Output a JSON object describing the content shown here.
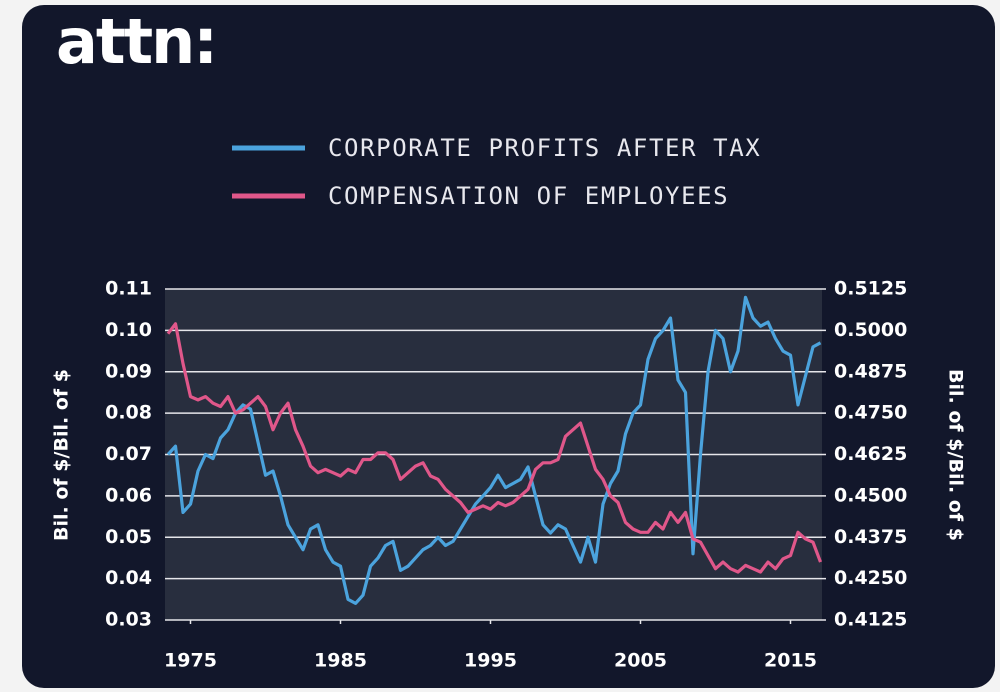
{
  "chart_data": {
    "type": "line",
    "logo": "attn:",
    "y_label": "Bil. of $/Bil. of $",
    "y2_label": "Bil. of $/Bil. of $",
    "x": [
      1973.5,
      1974,
      1974.5,
      1975,
      1975.5,
      1976,
      1976.5,
      1977,
      1977.5,
      1978,
      1978.5,
      1979,
      1979.5,
      1980,
      1980.5,
      1981,
      1981.5,
      1982,
      1982.5,
      1983,
      1983.5,
      1984,
      1984.5,
      1985,
      1985.5,
      1986,
      1986.5,
      1987,
      1987.5,
      1988,
      1988.5,
      1989,
      1989.5,
      1990,
      1990.5,
      1991,
      1991.5,
      1992,
      1992.5,
      1993,
      1993.5,
      1994,
      1994.5,
      1995,
      1995.5,
      1996,
      1996.5,
      1997,
      1997.5,
      1998,
      1998.5,
      1999,
      1999.5,
      2000,
      2000.5,
      2001,
      2001.5,
      2002,
      2002.5,
      2003,
      2003.5,
      2004,
      2004.5,
      2005,
      2005.5,
      2006,
      2006.5,
      2007,
      2007.5,
      2008,
      2008.5,
      2009,
      2009.5,
      2010,
      2010.5,
      2011,
      2011.5,
      2012,
      2012.5,
      2013,
      2013.5,
      2014,
      2014.5,
      2015,
      2015.5,
      2016,
      2016.5,
      2017
    ],
    "series": [
      {
        "name": "CORPORATE PROFITS AFTER TAX",
        "color": "#4ba3dd",
        "axis": "y",
        "values": [
          0.07,
          0.072,
          0.056,
          0.058,
          0.066,
          0.07,
          0.069,
          0.074,
          0.076,
          0.08,
          0.082,
          0.081,
          0.073,
          0.065,
          0.066,
          0.06,
          0.053,
          0.05,
          0.047,
          0.052,
          0.053,
          0.047,
          0.044,
          0.043,
          0.035,
          0.034,
          0.036,
          0.043,
          0.045,
          0.048,
          0.049,
          0.042,
          0.043,
          0.045,
          0.047,
          0.048,
          0.05,
          0.048,
          0.049,
          0.052,
          0.055,
          0.058,
          0.06,
          0.062,
          0.065,
          0.062,
          0.063,
          0.064,
          0.067,
          0.06,
          0.053,
          0.051,
          0.053,
          0.052,
          0.048,
          0.044,
          0.05,
          0.044,
          0.058,
          0.063,
          0.066,
          0.075,
          0.08,
          0.082,
          0.093,
          0.098,
          0.1,
          0.103,
          0.088,
          0.085,
          0.046,
          0.07,
          0.09,
          0.1,
          0.098,
          0.09,
          0.095,
          0.108,
          0.103,
          0.101,
          0.102,
          0.098,
          0.095,
          0.094,
          0.082,
          0.089,
          0.096,
          0.097
        ]
      },
      {
        "name": "COMPENSATION OF EMPLOYEES",
        "color": "#e0578a",
        "axis": "y2",
        "values": [
          0.499,
          0.502,
          0.49,
          0.48,
          0.479,
          0.48,
          0.478,
          0.477,
          0.48,
          0.475,
          0.476,
          0.478,
          0.48,
          0.477,
          0.47,
          0.475,
          0.478,
          0.47,
          0.465,
          0.459,
          0.457,
          0.458,
          0.457,
          0.456,
          0.458,
          0.457,
          0.461,
          0.461,
          0.463,
          0.463,
          0.461,
          0.455,
          0.457,
          0.459,
          0.46,
          0.456,
          0.455,
          0.452,
          0.45,
          0.448,
          0.445,
          0.446,
          0.447,
          0.446,
          0.448,
          0.447,
          0.448,
          0.45,
          0.452,
          0.458,
          0.46,
          0.46,
          0.461,
          0.468,
          0.47,
          0.472,
          0.465,
          0.458,
          0.455,
          0.45,
          0.448,
          0.442,
          0.44,
          0.439,
          0.439,
          0.442,
          0.44,
          0.445,
          0.442,
          0.445,
          0.437,
          0.436,
          0.432,
          0.428,
          0.43,
          0.428,
          0.427,
          0.429,
          0.428,
          0.427,
          0.43,
          0.428,
          0.431,
          0.432,
          0.439,
          0.437,
          0.436,
          0.43
        ]
      }
    ],
    "xlim": [
      1973.3,
      2017.1
    ],
    "xticks": [
      1975,
      1985,
      1995,
      2005,
      2015
    ],
    "ylim": [
      0.03,
      0.11
    ],
    "yticks": [
      0.03,
      0.04,
      0.05,
      0.06,
      0.07,
      0.08,
      0.09,
      {
        "value": 0.1,
        "label": "0.10"
      },
      0.11
    ],
    "y2lim": [
      0.4125,
      0.5125
    ],
    "y2ticks": [
      0.4125,
      {
        "value": 0.425,
        "label": "0.4250"
      },
      0.4375,
      {
        "value": 0.45,
        "label": "0.4500"
      },
      0.4625,
      {
        "value": 0.475,
        "label": "0.4750"
      },
      0.4875,
      {
        "value": 0.5,
        "label": "0.5000"
      },
      0.5125
    ],
    "grid": true
  }
}
